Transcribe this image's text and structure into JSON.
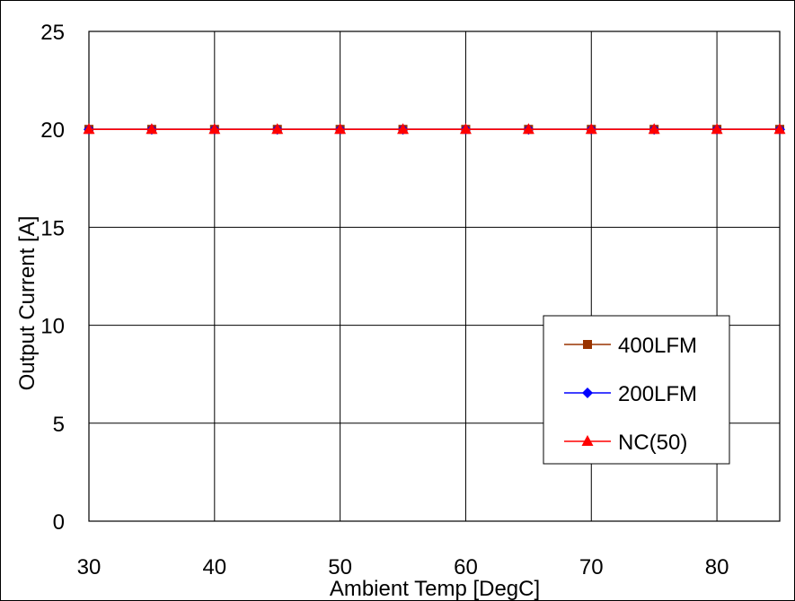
{
  "chart_data": {
    "type": "line",
    "title": "",
    "xlabel": "Ambient Temp [DegC]",
    "ylabel": "Output Current [A]",
    "x": [
      30,
      35,
      40,
      45,
      50,
      55,
      60,
      65,
      70,
      75,
      80,
      85
    ],
    "x_ticks": [
      "30",
      "40",
      "50",
      "60",
      "70",
      "80"
    ],
    "y_ticks": [
      "0",
      "5",
      "10",
      "15",
      "20",
      "25"
    ],
    "xlim": [
      30,
      85
    ],
    "ylim": [
      0,
      25
    ],
    "grid": true,
    "legend_position": "lower-right",
    "series": [
      {
        "name": "400LFM",
        "color": "#993300",
        "marker": "square",
        "values": [
          20,
          20,
          20,
          20,
          20,
          20,
          20,
          20,
          20,
          20,
          20,
          20
        ]
      },
      {
        "name": "200LFM",
        "color": "#0000ff",
        "marker": "diamond",
        "values": [
          20,
          20,
          20,
          20,
          20,
          20,
          20,
          20,
          20,
          20,
          20,
          20
        ]
      },
      {
        "name": "NC(50)",
        "color": "#ff0000",
        "marker": "triangle",
        "values": [
          20,
          20,
          20,
          20,
          20,
          20,
          20,
          20,
          20,
          20,
          20,
          20
        ]
      }
    ]
  }
}
